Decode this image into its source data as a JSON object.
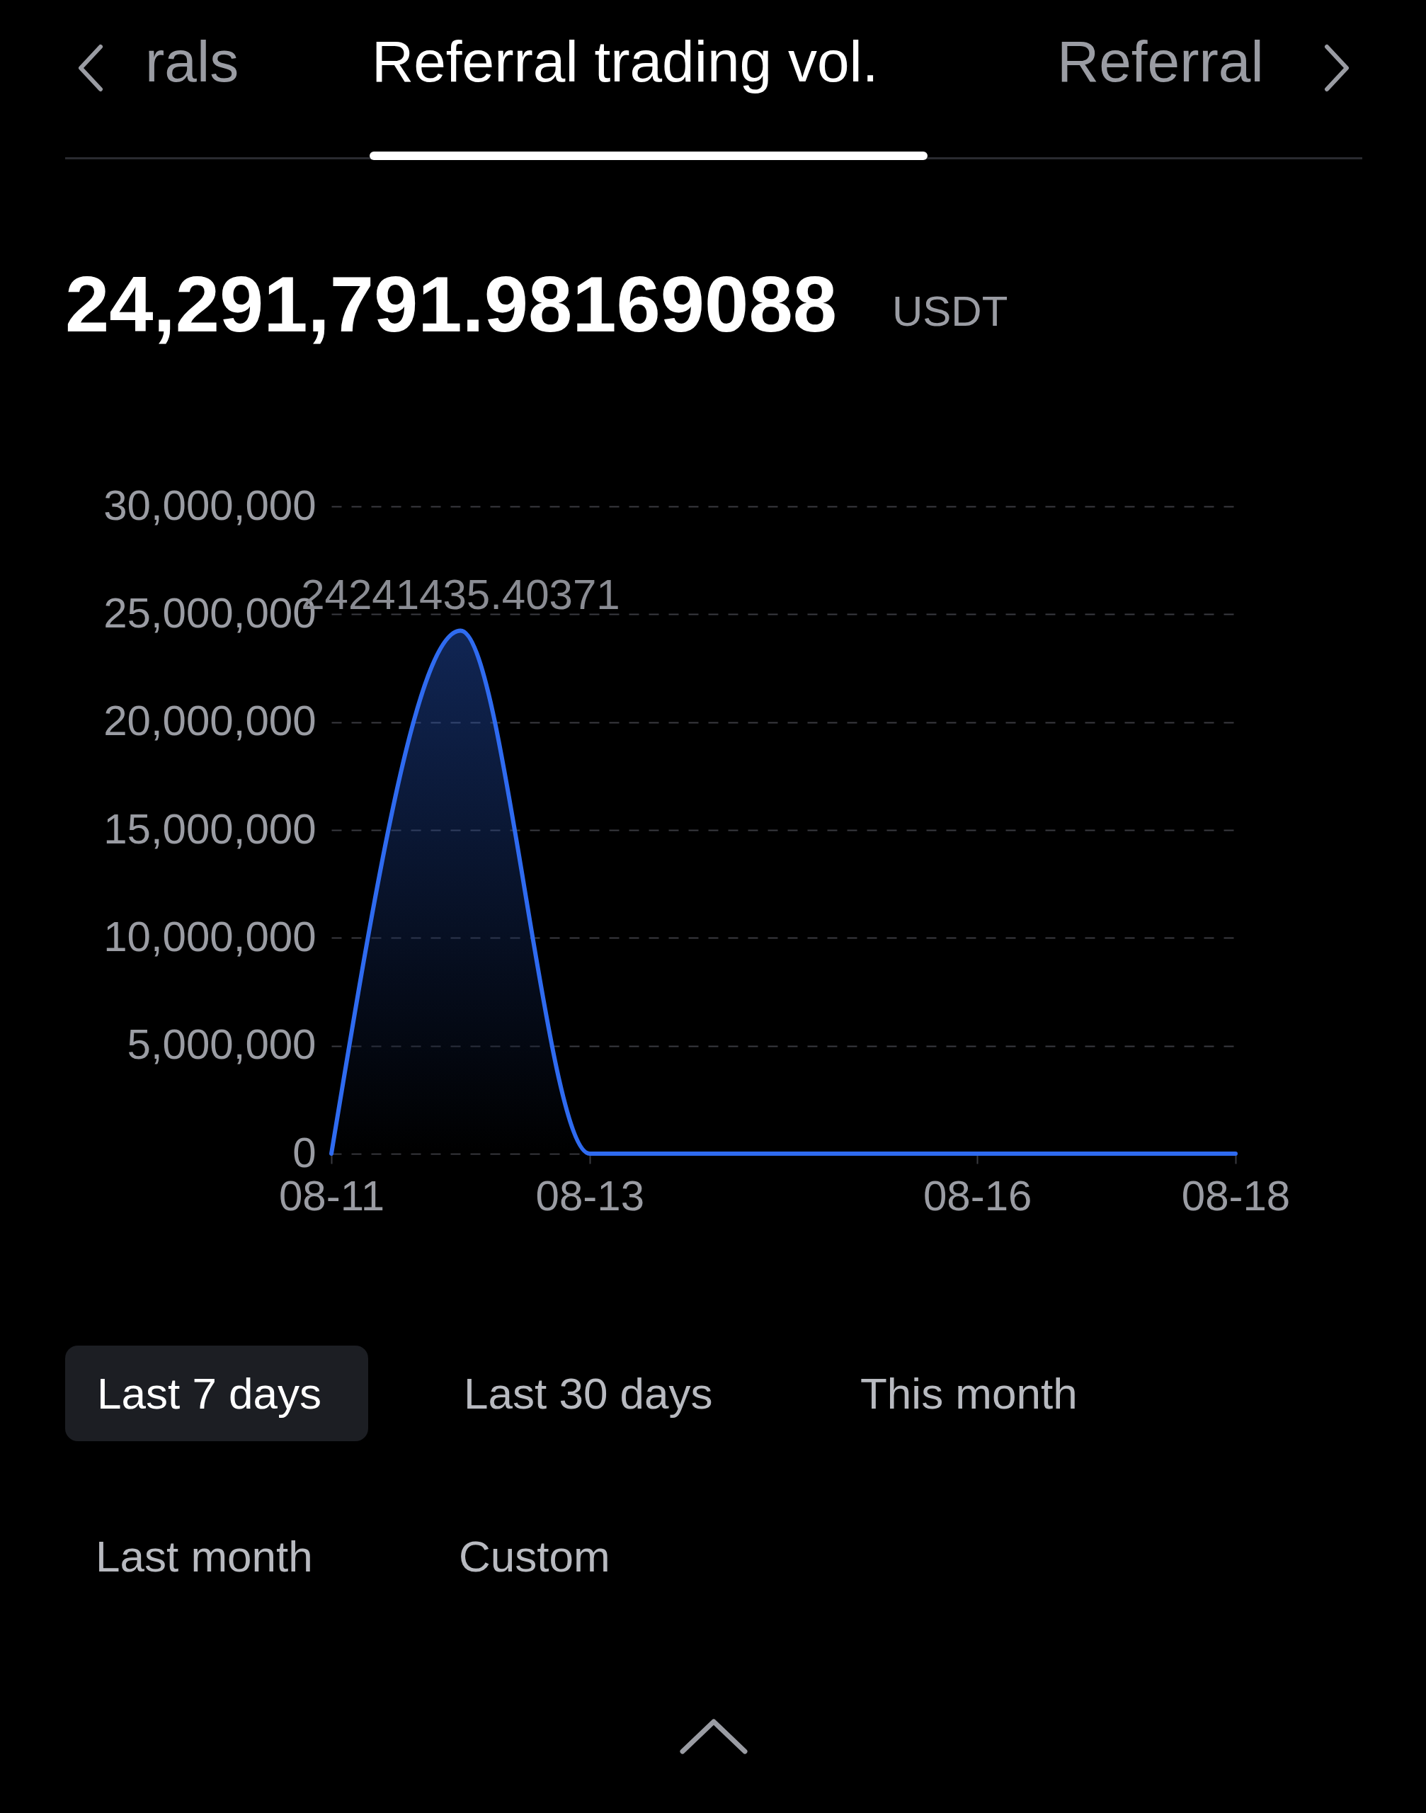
{
  "chart_data": {
    "type": "area",
    "title": "Referral trading vol.",
    "subtitle": "24,291,791.98169088",
    "annotations": [
      "USDT",
      "rals",
      "Referral",
      "Last 7 days",
      "Last 30 days",
      "This month",
      "Last month",
      "Custom"
    ],
    "categories": [
      "08-11",
      null,
      "08-13",
      null,
      null,
      "08-16",
      null,
      "08-18"
    ],
    "series": [
      {
        "color": "#2f6bf0",
        "values": [
          0,
          24241435.40371,
          0,
          0,
          0,
          0,
          0,
          0
        ],
        "value_labels": [
          null,
          "24241435.40371",
          null,
          null,
          null,
          null,
          null,
          null
        ]
      }
    ],
    "ylim": [
      0,
      30000000
    ],
    "yticks": [
      0,
      {
        "value": 5000000,
        "label": "5,000,000"
      },
      {
        "value": 10000000,
        "label": "10,000,000"
      },
      {
        "value": 15000000,
        "label": "15,000,000"
      },
      {
        "value": 20000000,
        "label": "20,000,000"
      },
      {
        "value": 25000000,
        "label": "25,000,000"
      },
      {
        "value": 30000000,
        "label": "30,000,000"
      }
    ],
    "grid": "y"
  }
}
